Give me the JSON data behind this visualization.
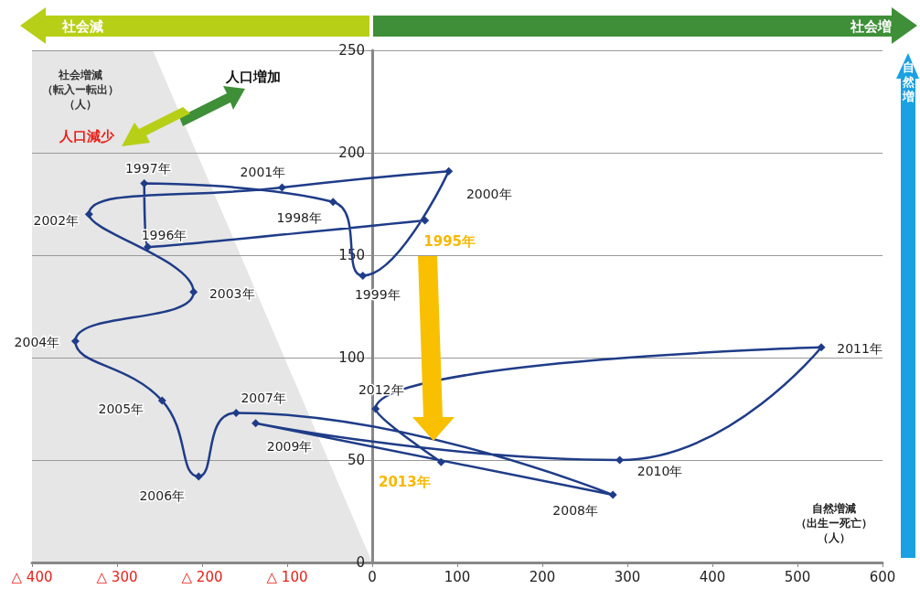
{
  "chart_data": {
    "type": "line",
    "xlabel": "自然増減（出生ー死亡）（人）",
    "ylabel": "社会増減（転入ー転出）（人）",
    "x": [
      62,
      -264,
      -268,
      -46,
      -11,
      90,
      -106,
      -333,
      -210,
      -349,
      -247,
      -204,
      -160,
      283,
      -137,
      291,
      528,
      4,
      81
    ],
    "series": [
      {
        "color": "#1f3c88",
        "values": [
          167,
          154,
          185,
          176,
          140,
          191,
          183,
          170,
          132,
          108,
          79,
          42,
          73,
          33,
          68,
          50,
          105,
          75,
          49
        ]
      }
    ],
    "xlim": [
      -400,
      600
    ],
    "xticks": [
      {
        "value": -400,
        "label": "△ 400"
      },
      {
        "value": -300,
        "label": "△ 300"
      },
      {
        "value": -200,
        "label": "△ 200"
      },
      {
        "value": -100,
        "label": "△ 100"
      },
      0,
      100,
      200,
      300,
      400,
      500,
      600
    ],
    "ylim": [
      0,
      250
    ],
    "yticks": [
      0,
      50,
      100,
      150,
      200,
      250
    ],
    "grid": "y",
    "marker": "diamond",
    "annotations": [
      "社会減",
      "社会増",
      "自然増",
      "人口増加",
      "人口減少",
      {
        "text": "1995年",
        "x": 62,
        "y": 167
      },
      {
        "text": "1996年",
        "x": -264,
        "y": 154
      },
      {
        "text": "1997年",
        "x": -268,
        "y": 185
      },
      {
        "text": "1998年",
        "x": -46,
        "y": 176
      },
      {
        "text": "1999年",
        "x": -11,
        "y": 140
      },
      {
        "text": "2000年",
        "x": 90,
        "y": 191
      },
      {
        "text": "2001年",
        "x": -106,
        "y": 183
      },
      {
        "text": "2002年",
        "x": -333,
        "y": 170
      },
      {
        "text": "2003年",
        "x": -210,
        "y": 132
      },
      {
        "text": "2004年",
        "x": -349,
        "y": 108
      },
      {
        "text": "2005年",
        "x": -247,
        "y": 79
      },
      {
        "text": "2006年",
        "x": -204,
        "y": 42
      },
      {
        "text": "2007年",
        "x": -160,
        "y": 73
      },
      {
        "text": "2008年",
        "x": 283,
        "y": 33
      },
      {
        "text": "2009年",
        "x": -137,
        "y": 68
      },
      {
        "text": "2010年",
        "x": 291,
        "y": 50
      },
      {
        "text": "2011年",
        "x": 528,
        "y": 105
      },
      {
        "text": "2012年",
        "x": 4,
        "y": 75
      },
      {
        "text": "2013年",
        "x": 81,
        "y": 49
      }
    ]
  }
}
